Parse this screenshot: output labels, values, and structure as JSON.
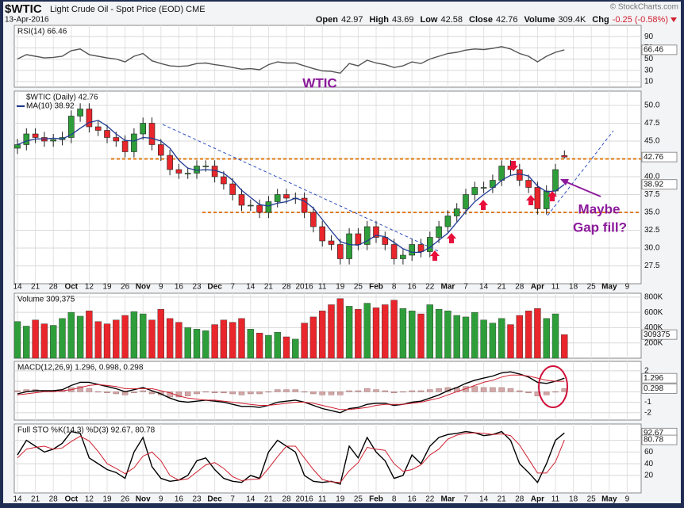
{
  "header": {
    "symbol": "$WTIC",
    "name": "Light Crude Oil - Spot Price (EOD) CME",
    "date": "13-Apr-2016",
    "source": "© StockCharts.com",
    "quote": [
      {
        "label": "Open",
        "value": 42.97
      },
      {
        "label": "High",
        "value": 43.69
      },
      {
        "label": "Low",
        "value": 42.58
      },
      {
        "label": "Close",
        "value": 42.76
      },
      {
        "label": "Volume",
        "value": "309.4K"
      },
      {
        "label": "Chg",
        "value": "-0.25 (-0.58%)"
      }
    ]
  },
  "chart_data": [
    {
      "type": "line",
      "legend": "RSI(14) 66.46",
      "ylim": [
        0,
        110
      ],
      "yticks": [
        10,
        30,
        50,
        70,
        90
      ],
      "grid": true,
      "series": [
        {
          "color": "#555555",
          "values": [
            50,
            58,
            55,
            52,
            53,
            55,
            65,
            68,
            58,
            55,
            52,
            50,
            45,
            55,
            60,
            47,
            42,
            38,
            37,
            38,
            42,
            43,
            40,
            38,
            35,
            32,
            33,
            31,
            40,
            45,
            43,
            43,
            38,
            33,
            29,
            28,
            25,
            42,
            38,
            48,
            43,
            40,
            35,
            38,
            45,
            42,
            50,
            55,
            60,
            62,
            66,
            68,
            67,
            69,
            72,
            68,
            60,
            55,
            45,
            55,
            62,
            66.46,
            null,
            null,
            null,
            null,
            null,
            null,
            null,
            null
          ]
        }
      ]
    },
    {
      "type": "candlestick",
      "legend": [
        "$WTIC (Daily) 42.76",
        "MA(10) 38.92"
      ],
      "grid": true,
      "categories": [
        "14",
        null,
        "21",
        null,
        "28",
        null,
        "Oct",
        null,
        "12",
        null,
        "19",
        null,
        "26",
        null,
        "Nov",
        null,
        "9",
        null,
        "16",
        null,
        "23",
        null,
        "Dec",
        null,
        "7",
        null,
        "14",
        null,
        "21",
        null,
        "28",
        null,
        "2016",
        null,
        "11",
        null,
        "19",
        null,
        "25",
        null,
        "Feb",
        null,
        "8",
        null,
        "16",
        null,
        "22",
        null,
        "Mar",
        null,
        "7",
        null,
        "14",
        null,
        "21",
        null,
        "28",
        null,
        "Apr",
        null,
        "11",
        null,
        "18",
        null,
        "25",
        null,
        "May",
        null,
        "9",
        null
      ],
      "open": [
        44.0,
        44.5,
        46.0,
        45.5,
        45.0,
        45.2,
        45.5,
        48.5,
        49.5,
        47.0,
        46.5,
        45.5,
        45.0,
        43.5,
        46.0,
        47.5,
        44.5,
        43.0,
        41.0,
        40.5,
        40.5,
        41.5,
        41.5,
        40.0,
        39.0,
        37.5,
        36.0,
        36.0,
        35.0,
        36.5,
        37.5,
        37.0,
        37.0,
        35.0,
        33.0,
        31.0,
        30.5,
        28.5,
        32.0,
        30.5,
        33.0,
        31.5,
        30.5,
        28.5,
        29.0,
        30.5,
        29.5,
        31.5,
        33.0,
        34.5,
        35.5,
        37.5,
        38.5,
        38.5,
        39.5,
        41.5,
        41.0,
        39.5,
        38.5,
        35.5,
        38.0,
        42.97,
        null,
        null,
        null,
        null,
        null,
        null,
        null,
        null
      ],
      "high": [
        45.3,
        46.8,
        46.8,
        46.3,
        46.0,
        46.3,
        49.3,
        50.3,
        50.3,
        47.8,
        47.3,
        46.3,
        45.8,
        46.8,
        48.3,
        48.3,
        45.3,
        43.8,
        41.8,
        41.3,
        42.3,
        42.3,
        42.3,
        40.8,
        39.8,
        38.3,
        36.8,
        36.8,
        37.3,
        38.3,
        38.3,
        37.8,
        37.8,
        35.8,
        33.8,
        31.8,
        31.3,
        32.8,
        32.8,
        33.8,
        33.8,
        32.3,
        31.3,
        29.8,
        31.3,
        31.3,
        32.3,
        33.8,
        35.3,
        36.3,
        38.3,
        39.3,
        39.3,
        40.3,
        42.3,
        42.3,
        41.8,
        40.3,
        39.3,
        38.8,
        41.8,
        43.69,
        null,
        null,
        null,
        null,
        null,
        null,
        null,
        null
      ],
      "low": [
        43.2,
        43.7,
        44.7,
        44.2,
        44.2,
        44.4,
        44.7,
        47.7,
        46.2,
        45.7,
        44.7,
        44.2,
        42.7,
        42.7,
        45.2,
        43.7,
        42.2,
        40.2,
        39.7,
        39.7,
        39.7,
        40.7,
        39.2,
        38.2,
        36.7,
        35.2,
        35.2,
        34.2,
        34.2,
        35.7,
        36.2,
        36.2,
        34.2,
        32.2,
        30.2,
        29.7,
        27.7,
        27.7,
        29.7,
        29.7,
        30.7,
        29.7,
        27.7,
        27.7,
        28.2,
        28.7,
        28.7,
        30.7,
        32.2,
        33.7,
        34.7,
        36.7,
        37.7,
        37.7,
        38.7,
        40.2,
        38.7,
        37.7,
        34.7,
        34.7,
        37.2,
        42.58,
        null,
        null,
        null,
        null,
        null,
        null,
        null,
        null
      ],
      "close": [
        44.5,
        46.0,
        45.5,
        45.0,
        45.2,
        45.5,
        48.5,
        49.5,
        47.0,
        46.5,
        45.5,
        45.0,
        43.5,
        46.0,
        47.5,
        44.5,
        43.0,
        41.0,
        40.5,
        40.5,
        41.5,
        41.5,
        40.0,
        39.0,
        37.5,
        36.0,
        36.0,
        35.0,
        36.5,
        37.5,
        37.0,
        37.0,
        35.0,
        33.0,
        31.0,
        30.5,
        28.5,
        32.0,
        30.5,
        33.0,
        31.5,
        30.5,
        28.5,
        29.0,
        30.5,
        29.5,
        31.5,
        33.0,
        34.5,
        35.5,
        37.5,
        38.5,
        38.5,
        39.5,
        41.5,
        41.0,
        39.5,
        38.5,
        35.5,
        38.0,
        41.0,
        42.76,
        null,
        null,
        null,
        null,
        null,
        null,
        null,
        null
      ],
      "up_color": "#2e9e3a",
      "down_color": "#e8262b",
      "series": [
        {
          "color": "#1f3a93",
          "values": [
            44.5,
            45.0,
            45.3,
            45.3,
            45.4,
            45.3,
            45.9,
            46.8,
            47.6,
            47.9,
            47.1,
            46.0,
            45.1,
            45.0,
            45.5,
            45.4,
            45.0,
            44.0,
            42.3,
            41.2,
            40.9,
            41.0,
            40.9,
            40.5,
            39.5,
            38.1,
            37.1,
            36.1,
            35.9,
            36.3,
            36.5,
            37.0,
            36.6,
            35.6,
            34.0,
            32.4,
            30.9,
            30.5,
            30.4,
            31.0,
            31.8,
            31.6,
            30.8,
            29.9,
            29.4,
            29.4,
            30.1,
            31.1,
            32.1,
            33.6,
            35.1,
            36.5,
            37.5,
            38.4,
            39.5,
            40.2,
            40.4,
            40.1,
            38.7,
            37.9,
            38.0,
            38.92,
            null,
            null,
            null,
            null,
            null,
            null,
            null,
            null
          ]
        }
      ],
      "hlines": [
        42.5,
        35
      ],
      "hline_color": "#e07b10",
      "annotations": [
        "WTIC",
        "Maybe",
        "Gap fill?"
      ],
      "annotation_color": "#8b1a9b",
      "ylim": [
        25,
        52
      ],
      "yticks": [
        27.5,
        {
          "value": 30,
          "label": "30.0"
        },
        32.5,
        {
          "value": 35,
          "label": "35.0"
        },
        37.5,
        {
          "value": 40,
          "label": "40.0"
        },
        42.5,
        {
          "value": 45,
          "label": "45.0"
        },
        47.5,
        {
          "value": 50,
          "label": "50.0"
        }
      ]
    },
    {
      "type": "bar",
      "legend": "Volume 309,375",
      "grid": true,
      "values": [
        480000,
        420000,
        500000,
        450000,
        430000,
        520000,
        600000,
        550000,
        620000,
        480000,
        450000,
        500000,
        560000,
        610000,
        580000,
        500000,
        640000,
        520000,
        470000,
        400000,
        380000,
        360000,
        440000,
        500000,
        470000,
        520000,
        380000,
        330000,
        300000,
        340000,
        280000,
        250000,
        460000,
        540000,
        620000,
        700000,
        780000,
        680000,
        640000,
        720000,
        660000,
        700000,
        760000,
        650000,
        620000,
        580000,
        700000,
        640000,
        620000,
        560000,
        540000,
        600000,
        500000,
        460000,
        520000,
        440000,
        560000,
        620000,
        650000,
        520000,
        580000,
        309375,
        null,
        null,
        null,
        null,
        null,
        null,
        null,
        null
      ],
      "ylim": [
        0,
        850000
      ],
      "yticks": [
        {
          "value": 200000,
          "label": "200K"
        },
        {
          "value": 400000,
          "label": "400K"
        },
        {
          "value": 600000,
          "label": "600K"
        },
        {
          "value": 800000,
          "label": "800K"
        }
      ]
    },
    {
      "type": "line",
      "legend": "MACD(12,26,9) 1.296, 0.998, 0.298",
      "grid": true,
      "series": [
        {
          "color": "#000000",
          "values": [
            -0.2,
            0,
            0.1,
            0.1,
            0.1,
            0.2,
            0.6,
            0.9,
            0.9,
            0.7,
            0.5,
            0.3,
            0,
            0.2,
            0.4,
            0.1,
            -0.2,
            -0.6,
            -0.9,
            -1.0,
            -0.9,
            -0.8,
            -0.9,
            -1.0,
            -1.2,
            -1.4,
            -1.4,
            -1.5,
            -1.3,
            -1.0,
            -0.9,
            -0.8,
            -1.0,
            -1.3,
            -1.6,
            -1.8,
            -2.0,
            -1.6,
            -1.5,
            -1.2,
            -1.1,
            -1.1,
            -1.3,
            -1.2,
            -1.0,
            -0.9,
            -0.6,
            -0.3,
            0.1,
            0.4,
            0.8,
            1.1,
            1.3,
            1.5,
            1.8,
            1.9,
            1.7,
            1.4,
            0.9,
            0.8,
            1.0,
            1.296,
            null,
            null,
            null,
            null,
            null,
            null,
            null,
            null
          ]
        },
        {
          "color": "#d02030",
          "values": [
            -0.3,
            -0.2,
            -0.1,
            0,
            0,
            0.1,
            0.2,
            0.4,
            0.6,
            0.7,
            0.6,
            0.5,
            0.3,
            0.3,
            0.3,
            0.3,
            0.1,
            -0.1,
            -0.4,
            -0.6,
            -0.7,
            -0.8,
            -0.8,
            -0.9,
            -1.0,
            -1.1,
            -1.2,
            -1.3,
            -1.3,
            -1.2,
            -1.1,
            -1.0,
            -1.0,
            -1.1,
            -1.3,
            -1.5,
            -1.7,
            -1.7,
            -1.6,
            -1.5,
            -1.3,
            -1.2,
            -1.2,
            -1.2,
            -1.1,
            -1.0,
            -0.8,
            -0.6,
            -0.3,
            0,
            0.3,
            0.6,
            0.9,
            1.1,
            1.4,
            1.6,
            1.6,
            1.5,
            1.3,
            1.1,
            1.0,
            0.998,
            null,
            null,
            null,
            null,
            null,
            null,
            null,
            null
          ]
        }
      ],
      "histogram": {
        "color": "#d4a8a8",
        "values": [
          0.1,
          0.2,
          0.2,
          0.1,
          0.1,
          0.1,
          0.4,
          0.5,
          0.3,
          0,
          -0.1,
          -0.2,
          -0.3,
          -0.1,
          0.1,
          -0.2,
          -0.3,
          -0.5,
          -0.5,
          -0.4,
          -0.2,
          0,
          -0.1,
          -0.1,
          -0.2,
          -0.3,
          -0.2,
          -0.2,
          0,
          0.2,
          0.2,
          0.2,
          0,
          -0.2,
          -0.3,
          -0.3,
          -0.3,
          0.1,
          0.1,
          0.3,
          0.2,
          0.1,
          -0.1,
          0,
          0.1,
          0.1,
          0.2,
          0.3,
          0.4,
          0.4,
          0.5,
          0.5,
          0.4,
          0.4,
          0.4,
          0.3,
          0.1,
          -0.1,
          -0.4,
          -0.3,
          0,
          0.298,
          null,
          null,
          null,
          null,
          null,
          null,
          null,
          null
        ]
      },
      "ylim": [
        -2.7,
        2.9
      ],
      "yticks": [
        -2,
        -1,
        0,
        1,
        2
      ]
    },
    {
      "type": "line",
      "legend": "Full STO %K(14,3) %D(3) 92.67, 80.78",
      "grid": true,
      "series": [
        {
          "color": "#000000",
          "values": [
            55,
            80,
            70,
            60,
            65,
            75,
            95,
            92,
            50,
            40,
            30,
            25,
            15,
            60,
            85,
            35,
            15,
            10,
            12,
            20,
            45,
            50,
            30,
            15,
            10,
            8,
            20,
            15,
            60,
            80,
            70,
            60,
            20,
            10,
            8,
            10,
            5,
            70,
            50,
            85,
            60,
            45,
            15,
            20,
            55,
            40,
            70,
            85,
            90,
            92,
            95,
            93,
            88,
            90,
            95,
            80,
            40,
            25,
            8,
            40,
            80,
            92.67,
            null,
            null,
            null,
            null,
            null,
            null,
            null,
            null
          ]
        },
        {
          "color": "#d02030",
          "values": [
            50,
            65,
            68,
            70,
            65,
            67,
            78,
            87,
            79,
            61,
            40,
            32,
            23,
            33,
            53,
            60,
            45,
            20,
            12,
            14,
            26,
            38,
            42,
            32,
            18,
            11,
            13,
            14,
            32,
            52,
            70,
            70,
            50,
            30,
            13,
            9,
            8,
            28,
            42,
            68,
            65,
            63,
            40,
            27,
            30,
            38,
            55,
            65,
            82,
            89,
            92,
            93,
            92,
            90,
            91,
            88,
            72,
            48,
            24,
            24,
            43,
            80.78,
            null,
            null,
            null,
            null,
            null,
            null,
            null,
            null
          ]
        }
      ],
      "ylim": [
        -10,
        108
      ],
      "yticks": [
        20,
        40,
        60,
        80
      ]
    }
  ]
}
